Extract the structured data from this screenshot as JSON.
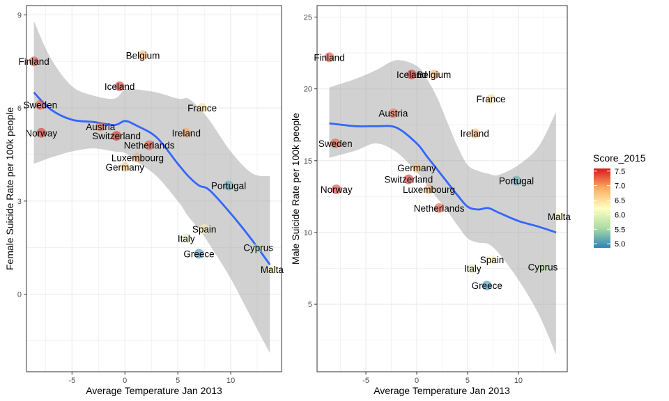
{
  "chart_data": [
    {
      "type": "scatter",
      "xlabel": "Average Temperature Jan 2013",
      "ylabel": "Female Suicide Rate per 100k people",
      "xlim": [
        -9.3,
        14.8
      ],
      "ylim": [
        -2.5,
        9.3
      ],
      "x_ticks": [
        -5,
        0,
        5,
        10
      ],
      "x_tick_labels": [
        "-5",
        "0",
        "5",
        "10"
      ],
      "y_ticks": [
        0,
        3,
        6,
        9
      ],
      "y_tick_labels": [
        "0",
        "3",
        "6",
        "9"
      ],
      "grid": true,
      "points": [
        {
          "label": "Finland",
          "x": -8.6,
          "y": 7.5,
          "score": 7.41
        },
        {
          "label": "Belgium",
          "x": 1.7,
          "y": 7.7,
          "score": 6.94
        },
        {
          "label": "Iceland",
          "x": -0.5,
          "y": 6.7,
          "score": 7.56
        },
        {
          "label": "Sweden",
          "x": -8.0,
          "y": 6.1,
          "score": 7.36
        },
        {
          "label": "France",
          "x": 7.3,
          "y": 6.0,
          "score": 6.58
        },
        {
          "label": "Norway",
          "x": -7.9,
          "y": 5.2,
          "score": 7.52
        },
        {
          "label": "Austria",
          "x": -2.3,
          "y": 5.4,
          "score": 7.2
        },
        {
          "label": "Switzerland",
          "x": -0.8,
          "y": 5.1,
          "score": 7.59
        },
        {
          "label": "Ireland",
          "x": 5.8,
          "y": 5.2,
          "score": 6.94
        },
        {
          "label": "Netherlands",
          "x": 2.3,
          "y": 4.8,
          "score": 7.38
        },
        {
          "label": "Luxembourg",
          "x": 1.2,
          "y": 4.4,
          "score": 6.95
        },
        {
          "label": "Germany",
          "x": 0.0,
          "y": 4.1,
          "score": 6.75
        },
        {
          "label": "Portugal",
          "x": 9.8,
          "y": 3.5,
          "score": 5.1
        },
        {
          "label": "Spain",
          "x": 7.5,
          "y": 2.1,
          "score": 6.33
        },
        {
          "label": "Italy",
          "x": 5.8,
          "y": 1.8,
          "score": 5.95
        },
        {
          "label": "Cyprus",
          "x": 12.6,
          "y": 1.5,
          "score": 5.69
        },
        {
          "label": "Greece",
          "x": 7.0,
          "y": 1.3,
          "score": 4.86
        },
        {
          "label": "Malta",
          "x": 13.9,
          "y": 0.8,
          "score": 6.3
        }
      ],
      "trend": {
        "x": [
          -8.6,
          -7,
          -5,
          -3,
          -1,
          0,
          1,
          3,
          5,
          6,
          7,
          8,
          10,
          12,
          13.7
        ],
        "y": [
          6.5,
          5.95,
          5.62,
          5.55,
          5.45,
          5.58,
          5.45,
          5.05,
          4.2,
          3.8,
          3.5,
          3.35,
          2.6,
          1.75,
          0.95
        ],
        "lo": [
          4.2,
          4.4,
          4.6,
          4.7,
          4.6,
          4.55,
          4.3,
          3.8,
          3.0,
          2.5,
          2.1,
          1.6,
          0.5,
          -0.8,
          -1.9
        ],
        "hi": [
          8.8,
          7.6,
          6.7,
          6.4,
          6.3,
          6.6,
          6.6,
          6.5,
          6.3,
          6.3,
          6.0,
          5.6,
          4.6,
          3.9,
          3.8
        ]
      }
    },
    {
      "type": "scatter",
      "xlabel": "Average Temperature Jan 2013",
      "ylabel": "Male Suicide Rate per 100k people",
      "xlim": [
        -9.8,
        14.8
      ],
      "ylim": [
        0.3,
        25.8
      ],
      "x_ticks": [
        -5,
        0,
        5,
        10
      ],
      "x_tick_labels": [
        "-5",
        "0",
        "5",
        "10"
      ],
      "y_ticks": [
        5,
        10,
        15,
        20,
        25
      ],
      "y_tick_labels": [
        "5",
        "10",
        "15",
        "20",
        "25"
      ],
      "grid": true,
      "points": [
        {
          "label": "Finland",
          "x": -8.6,
          "y": 22.2,
          "score": 7.41
        },
        {
          "label": "Iceland",
          "x": -0.5,
          "y": 21.0,
          "score": 7.56
        },
        {
          "label": "Belgium",
          "x": 1.7,
          "y": 21.0,
          "score": 6.94
        },
        {
          "label": "France",
          "x": 7.3,
          "y": 19.3,
          "score": 6.58
        },
        {
          "label": "Austria",
          "x": -2.3,
          "y": 18.3,
          "score": 7.2
        },
        {
          "label": "Ireland",
          "x": 5.7,
          "y": 16.9,
          "score": 6.94
        },
        {
          "label": "Sweden",
          "x": -8.0,
          "y": 16.2,
          "score": 7.36
        },
        {
          "label": "Germany",
          "x": 0.0,
          "y": 14.5,
          "score": 6.75
        },
        {
          "label": "Switzerland",
          "x": -0.8,
          "y": 13.7,
          "score": 7.59
        },
        {
          "label": "Portugal",
          "x": 9.8,
          "y": 13.6,
          "score": 5.1
        },
        {
          "label": "Norway",
          "x": -7.9,
          "y": 13.0,
          "score": 7.52
        },
        {
          "label": "Luxembourg",
          "x": 1.2,
          "y": 13.0,
          "score": 6.95
        },
        {
          "label": "Netherlands",
          "x": 2.2,
          "y": 11.7,
          "score": 7.38
        },
        {
          "label": "Malta",
          "x": 14.0,
          "y": 11.1,
          "score": 6.3
        },
        {
          "label": "Spain",
          "x": 7.4,
          "y": 8.1,
          "score": 6.33
        },
        {
          "label": "Cyprus",
          "x": 12.4,
          "y": 7.6,
          "score": 5.69
        },
        {
          "label": "Italy",
          "x": 5.5,
          "y": 7.5,
          "score": 5.95
        },
        {
          "label": "Greece",
          "x": 6.9,
          "y": 6.3,
          "score": 4.86
        }
      ],
      "trend": {
        "x": [
          -8.6,
          -6,
          -4,
          -2,
          0,
          1,
          2,
          3,
          4,
          5,
          6,
          7,
          8,
          10,
          12,
          13.7
        ],
        "y": [
          17.6,
          17.4,
          17.4,
          17.3,
          16.2,
          15.3,
          14.4,
          13.5,
          12.6,
          11.8,
          11.6,
          11.7,
          11.4,
          10.8,
          10.4,
          10.0
        ],
        "lo": [
          15.2,
          15.7,
          16.2,
          15.6,
          14.2,
          13.3,
          12.4,
          11.5,
          10.5,
          9.6,
          9.3,
          9.2,
          8.6,
          6.7,
          4.3,
          1.5
        ],
        "hi": [
          20.1,
          20.7,
          21.3,
          22.0,
          21.6,
          20.7,
          19.4,
          17.7,
          16.0,
          14.7,
          14.3,
          14.1,
          14.0,
          14.7,
          16.0,
          18.4
        ]
      }
    }
  ],
  "legend": {
    "title": "Score_2015",
    "ticks": [
      "7.5",
      "7.0",
      "6.5",
      "6.0",
      "5.5",
      "5.0"
    ],
    "tick_values": [
      7.5,
      7.0,
      6.5,
      6.0,
      5.5,
      5.0
    ],
    "range": [
      4.86,
      7.59
    ],
    "colors": [
      "#D7191C",
      "#FDAE61",
      "#FFFFBF",
      "#ABDDA4",
      "#2B83BA"
    ]
  }
}
